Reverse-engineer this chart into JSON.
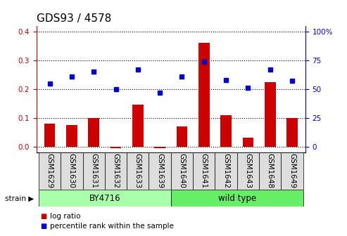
{
  "title": "GDS93 / 4578",
  "samples": [
    "GSM1629",
    "GSM1630",
    "GSM1631",
    "GSM1632",
    "GSM1633",
    "GSM1639",
    "GSM1640",
    "GSM1641",
    "GSM1642",
    "GSM1643",
    "GSM1648",
    "GSM1649"
  ],
  "log_ratio": [
    0.08,
    0.075,
    0.1,
    -0.005,
    0.145,
    -0.005,
    0.07,
    0.36,
    0.11,
    0.03,
    0.225,
    0.1
  ],
  "percentile_rank": [
    55,
    61,
    65,
    50,
    67,
    47,
    61,
    74,
    58,
    51,
    67,
    57
  ],
  "strain_groups": [
    {
      "label": "BY4716",
      "start": 0,
      "end": 6,
      "color": "#aaffaa"
    },
    {
      "label": "wild type",
      "start": 6,
      "end": 12,
      "color": "#66ee66"
    }
  ],
  "bar_color": "#cc0000",
  "dot_color": "#0000cc",
  "ylim_left": [
    -0.02,
    0.42
  ],
  "ylim_right": [
    -5,
    105
  ],
  "yticks_left": [
    0.0,
    0.1,
    0.2,
    0.3,
    0.4
  ],
  "yticks_right": [
    0,
    25,
    50,
    75,
    100
  ],
  "ytick_labels_right": [
    "0",
    "25",
    "50",
    "75",
    "100%"
  ],
  "title_fontsize": 11,
  "tick_label_fontsize": 7.5,
  "axis_label_color_left": "#cc0000",
  "axis_label_color_right": "#0000cc",
  "bg_color": "#ffffff",
  "cell_bg_color": "#dddddd",
  "strain_label": "strain"
}
